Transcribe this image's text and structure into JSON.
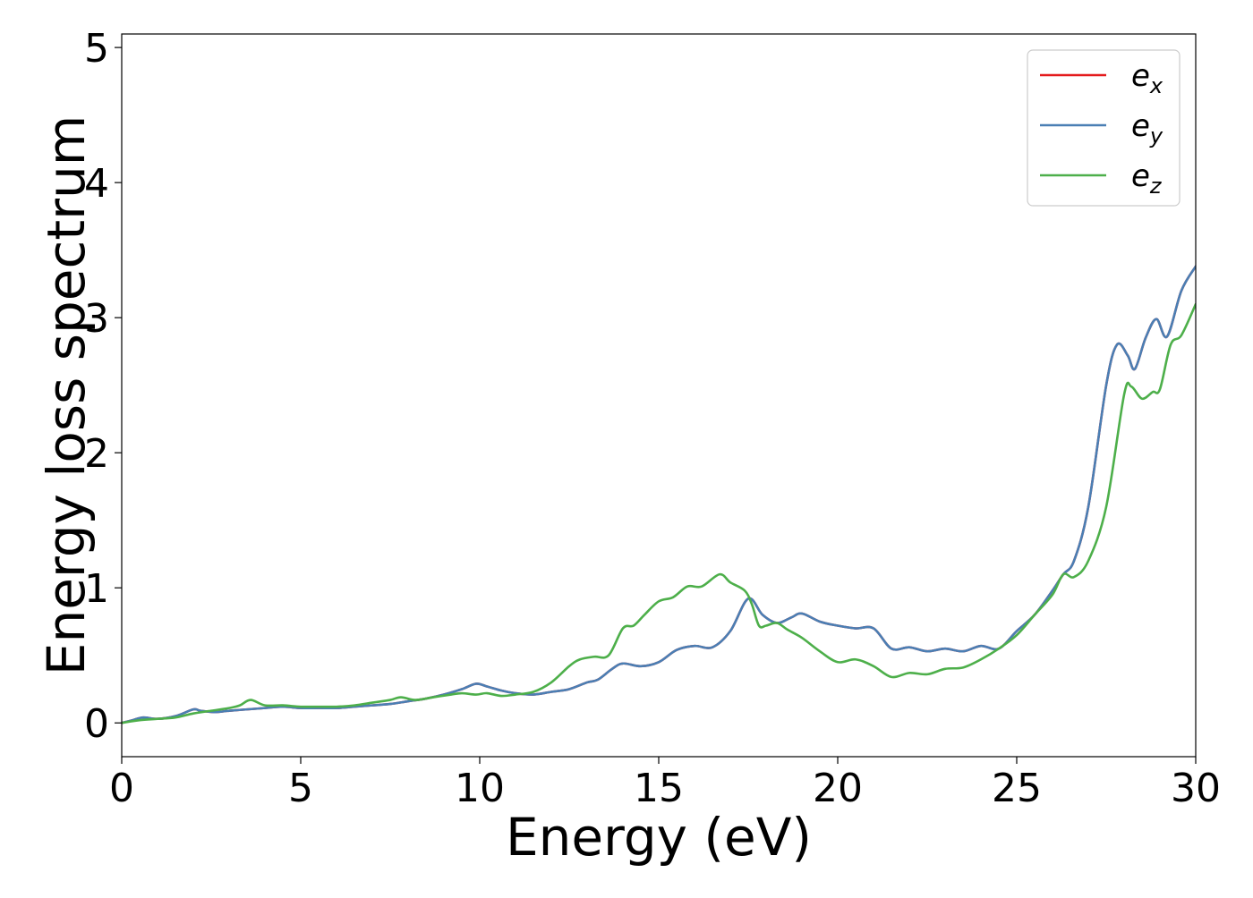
{
  "chart_data": {
    "type": "line",
    "title": "",
    "xlabel": "Energy (eV)",
    "ylabel": "Energy loss spectrum",
    "xlim": [
      0,
      30
    ],
    "ylim": [
      -0.25,
      5.1
    ],
    "xticks": [
      0,
      5,
      10,
      15,
      20,
      25,
      30
    ],
    "xtick_labels": [
      "0",
      "5",
      "10",
      "15",
      "20",
      "25",
      "30"
    ],
    "yticks": [
      0,
      1,
      2,
      3,
      4,
      5
    ],
    "ytick_labels": [
      "0",
      "1",
      "2",
      "3",
      "4",
      "5"
    ],
    "grid": false,
    "legend_position": "top-right",
    "series": [
      {
        "name": "e_x",
        "legend_base": "e",
        "legend_sub": "x",
        "color": "#e41a1c",
        "x": [
          0,
          0.3,
          0.6,
          1.0,
          1.5,
          2.0,
          2.2,
          2.6,
          3.0,
          3.5,
          4.0,
          4.5,
          5.0,
          5.5,
          6.0,
          6.5,
          7.0,
          7.5,
          8.0,
          8.5,
          9.0,
          9.5,
          9.9,
          10.2,
          10.6,
          11.0,
          11.5,
          12.0,
          12.5,
          13.0,
          13.3,
          13.7,
          14.0,
          14.5,
          15.0,
          15.5,
          16.0,
          16.5,
          17.0,
          17.5,
          17.9,
          18.3,
          18.7,
          19.0,
          19.5,
          20.0,
          20.5,
          21.0,
          21.5,
          22.0,
          22.5,
          23.0,
          23.5,
          24.0,
          24.5,
          25.0,
          25.5,
          26.0,
          26.3,
          26.6,
          27.0,
          27.5,
          27.8,
          28.1,
          28.3,
          28.6,
          28.9,
          29.2,
          29.6,
          30.0
        ],
        "y": [
          0.0,
          0.02,
          0.04,
          0.03,
          0.05,
          0.1,
          0.09,
          0.08,
          0.09,
          0.1,
          0.11,
          0.12,
          0.11,
          0.11,
          0.11,
          0.12,
          0.13,
          0.14,
          0.16,
          0.18,
          0.21,
          0.25,
          0.29,
          0.27,
          0.24,
          0.22,
          0.21,
          0.23,
          0.25,
          0.3,
          0.32,
          0.4,
          0.44,
          0.42,
          0.45,
          0.54,
          0.57,
          0.56,
          0.68,
          0.92,
          0.8,
          0.74,
          0.78,
          0.81,
          0.75,
          0.72,
          0.7,
          0.7,
          0.55,
          0.56,
          0.53,
          0.55,
          0.53,
          0.57,
          0.55,
          0.68,
          0.8,
          0.98,
          1.1,
          1.2,
          1.6,
          2.5,
          2.8,
          2.72,
          2.62,
          2.85,
          2.99,
          2.86,
          3.2,
          3.38
        ]
      },
      {
        "name": "e_y",
        "legend_base": "e",
        "legend_sub": "y",
        "color": "#4a7fb4",
        "x": [
          0,
          0.3,
          0.6,
          1.0,
          1.5,
          2.0,
          2.2,
          2.6,
          3.0,
          3.5,
          4.0,
          4.5,
          5.0,
          5.5,
          6.0,
          6.5,
          7.0,
          7.5,
          8.0,
          8.5,
          9.0,
          9.5,
          9.9,
          10.2,
          10.6,
          11.0,
          11.5,
          12.0,
          12.5,
          13.0,
          13.3,
          13.7,
          14.0,
          14.5,
          15.0,
          15.5,
          16.0,
          16.5,
          17.0,
          17.5,
          17.9,
          18.3,
          18.7,
          19.0,
          19.5,
          20.0,
          20.5,
          21.0,
          21.5,
          22.0,
          22.5,
          23.0,
          23.5,
          24.0,
          24.5,
          25.0,
          25.5,
          26.0,
          26.3,
          26.6,
          27.0,
          27.5,
          27.8,
          28.1,
          28.3,
          28.6,
          28.9,
          29.2,
          29.6,
          30.0
        ],
        "y": [
          0.0,
          0.02,
          0.04,
          0.03,
          0.05,
          0.1,
          0.09,
          0.08,
          0.09,
          0.1,
          0.11,
          0.12,
          0.11,
          0.11,
          0.11,
          0.12,
          0.13,
          0.14,
          0.16,
          0.18,
          0.21,
          0.25,
          0.29,
          0.27,
          0.24,
          0.22,
          0.21,
          0.23,
          0.25,
          0.3,
          0.32,
          0.4,
          0.44,
          0.42,
          0.45,
          0.54,
          0.57,
          0.56,
          0.68,
          0.92,
          0.8,
          0.74,
          0.78,
          0.81,
          0.75,
          0.72,
          0.7,
          0.7,
          0.55,
          0.56,
          0.53,
          0.55,
          0.53,
          0.57,
          0.55,
          0.68,
          0.8,
          0.98,
          1.1,
          1.2,
          1.6,
          2.5,
          2.8,
          2.72,
          2.62,
          2.85,
          2.99,
          2.86,
          3.2,
          3.38
        ]
      },
      {
        "name": "e_z",
        "legend_base": "e",
        "legend_sub": "z",
        "color": "#4daf4a",
        "x": [
          0,
          0.5,
          1.0,
          1.5,
          2.0,
          2.5,
          3.0,
          3.3,
          3.6,
          4.0,
          4.5,
          5.0,
          5.5,
          6.0,
          6.5,
          7.0,
          7.5,
          7.8,
          8.2,
          8.7,
          9.2,
          9.5,
          9.9,
          10.2,
          10.6,
          11.0,
          11.5,
          12.0,
          12.5,
          12.8,
          13.2,
          13.6,
          14.0,
          14.3,
          14.6,
          15.0,
          15.4,
          15.8,
          16.2,
          16.7,
          17.0,
          17.4,
          17.6,
          17.8,
          18.0,
          18.3,
          18.6,
          19.0,
          19.5,
          20.0,
          20.5,
          21.0,
          21.5,
          22.0,
          22.5,
          23.0,
          23.5,
          24.0,
          24.5,
          25.0,
          25.5,
          26.0,
          26.3,
          26.6,
          27.0,
          27.5,
          28.0,
          28.2,
          28.5,
          28.8,
          29.0,
          29.3,
          29.6,
          30.0
        ],
        "y": [
          0.0,
          0.02,
          0.03,
          0.04,
          0.07,
          0.09,
          0.11,
          0.13,
          0.17,
          0.13,
          0.13,
          0.12,
          0.12,
          0.12,
          0.13,
          0.15,
          0.17,
          0.19,
          0.17,
          0.19,
          0.21,
          0.22,
          0.21,
          0.22,
          0.2,
          0.21,
          0.23,
          0.3,
          0.42,
          0.47,
          0.49,
          0.5,
          0.7,
          0.72,
          0.8,
          0.9,
          0.93,
          1.01,
          1.01,
          1.1,
          1.04,
          0.98,
          0.88,
          0.72,
          0.72,
          0.74,
          0.69,
          0.63,
          0.53,
          0.45,
          0.47,
          0.42,
          0.34,
          0.37,
          0.36,
          0.4,
          0.41,
          0.47,
          0.55,
          0.65,
          0.8,
          0.95,
          1.1,
          1.08,
          1.2,
          1.6,
          2.43,
          2.49,
          2.4,
          2.45,
          2.47,
          2.8,
          2.87,
          3.1
        ]
      }
    ]
  }
}
